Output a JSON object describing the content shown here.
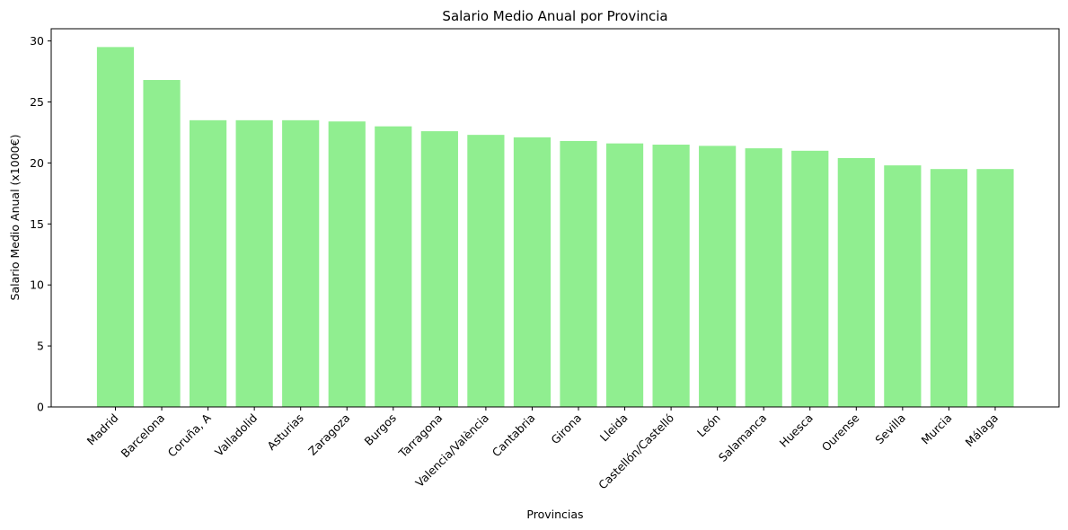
{
  "chart_data": {
    "type": "bar",
    "title": "Salario Medio Anual por Provincia",
    "xlabel": "Provincias",
    "ylabel": "Salario Medio Anual (x1000€)",
    "categories": [
      "Madrid",
      "Barcelona",
      "Coruña, A",
      "Valladolid",
      "Asturias",
      "Zaragoza",
      "Burgos",
      "Tarragona",
      "Valencia/València",
      "Cantabria",
      "Girona",
      "Lleida",
      "Castellón/Castelló",
      "León",
      "Salamanca",
      "Huesca",
      "Ourense",
      "Sevilla",
      "Murcia",
      "Málaga"
    ],
    "values": [
      29.5,
      26.8,
      23.5,
      23.5,
      23.5,
      23.4,
      23.0,
      22.6,
      22.3,
      22.1,
      21.8,
      21.6,
      21.5,
      21.4,
      21.2,
      21.0,
      20.4,
      19.8,
      19.5,
      19.5
    ],
    "ylim": [
      0,
      31.0
    ],
    "yticks": [
      "0",
      "5",
      "10",
      "15",
      "20",
      "25",
      "30"
    ],
    "bar_color": "#90ee90",
    "grid": false,
    "legend": "none"
  }
}
